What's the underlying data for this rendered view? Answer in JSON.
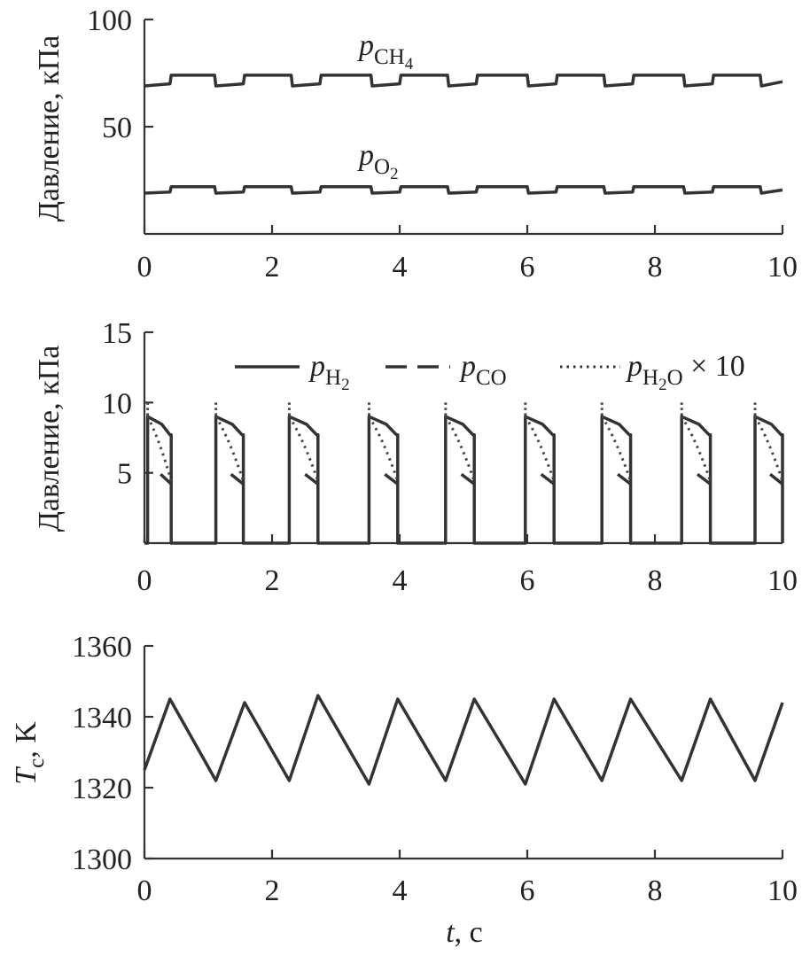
{
  "chart_data": [
    {
      "type": "line",
      "ylabel": "Давление, кПа",
      "xlim": [
        0,
        10
      ],
      "ylim": [
        0,
        100
      ],
      "xticks": [
        "0",
        "2",
        "4",
        "6",
        "8",
        "10"
      ],
      "yticks": [
        "50",
        "100"
      ],
      "grid": false,
      "annotations": [
        {
          "base": "p",
          "sub": "CH",
          "subsub": "4",
          "near_series": "CH4"
        },
        {
          "base": "p",
          "sub": "O",
          "subsub": "2",
          "near_series": "O2"
        }
      ],
      "series": [
        {
          "key": "CH4",
          "style": "solid",
          "x": [
            0,
            0.4,
            0.42,
            1.1,
            1.12,
            1.55,
            1.57,
            2.3,
            2.32,
            2.75,
            2.77,
            3.55,
            3.57,
            4.0,
            4.02,
            4.75,
            4.77,
            5.2,
            5.22,
            6.0,
            6.02,
            6.45,
            6.47,
            7.2,
            7.22,
            7.65,
            7.67,
            8.45,
            8.47,
            8.9,
            8.92,
            9.65,
            9.67,
            10
          ],
          "y": [
            69,
            70,
            74,
            74,
            69,
            70,
            74,
            74,
            69,
            70,
            74,
            74,
            69,
            70,
            74,
            74,
            69,
            70,
            74,
            74,
            69,
            70,
            74,
            74,
            69,
            70,
            74,
            74,
            69,
            70,
            74,
            74,
            69,
            71
          ]
        },
        {
          "key": "O2",
          "style": "solid",
          "x": [
            0,
            0.4,
            0.42,
            1.1,
            1.12,
            1.55,
            1.57,
            2.3,
            2.32,
            2.75,
            2.77,
            3.55,
            3.57,
            4.0,
            4.02,
            4.75,
            4.77,
            5.2,
            5.22,
            6.0,
            6.02,
            6.45,
            6.47,
            7.2,
            7.22,
            7.65,
            7.67,
            8.45,
            8.47,
            8.9,
            8.92,
            9.65,
            9.67,
            10
          ],
          "y": [
            19,
            19.5,
            22,
            22,
            19,
            19.5,
            22,
            22,
            19,
            19.5,
            22,
            22,
            19,
            19.5,
            22,
            22,
            19,
            19.5,
            22,
            22,
            19,
            19.5,
            22,
            22,
            19,
            19.5,
            22,
            22,
            19,
            19.5,
            22,
            22,
            19,
            20.5
          ]
        }
      ]
    },
    {
      "type": "line",
      "ylabel": "Давление, кПа",
      "xlim": [
        0,
        10
      ],
      "ylim": [
        0,
        15
      ],
      "xticks": [
        "0",
        "2",
        "4",
        "6",
        "8",
        "10"
      ],
      "yticks": [
        "5",
        "10",
        "15"
      ],
      "grid": false,
      "legend": {
        "placement": "top",
        "entries": [
          {
            "key": "H2",
            "base": "p",
            "sub": "H",
            "subsub": "2",
            "suffix": "",
            "style": "solid"
          },
          {
            "key": "CO",
            "base": "p",
            "sub": "CO",
            "subsub": "",
            "suffix": "",
            "style": "dashed"
          },
          {
            "key": "H2O",
            "base": "p",
            "sub": "H",
            "subsub": "2",
            "sub2": "O",
            "suffix": " × 10",
            "style": "dotted"
          }
        ]
      },
      "pulses": [
        {
          "start": 0.05,
          "end": 0.42
        },
        {
          "start": 1.12,
          "end": 1.55
        },
        {
          "start": 2.27,
          "end": 2.72
        },
        {
          "start": 3.52,
          "end": 3.97
        },
        {
          "start": 4.72,
          "end": 5.17
        },
        {
          "start": 5.97,
          "end": 6.42
        },
        {
          "start": 7.17,
          "end": 7.62
        },
        {
          "start": 8.42,
          "end": 8.87
        },
        {
          "start": 9.57,
          "end": 10.0
        }
      ],
      "pulse_profile": {
        "H2": {
          "start": 9.0,
          "end": 7.7
        },
        "CO": {
          "start": 4.9,
          "end": 4.2
        },
        "H2O_x10": {
          "start": 9.0,
          "end": 4.4
        },
        "spike": 10.0,
        "baseline": 0.0
      }
    },
    {
      "type": "line",
      "xlabel": "t, с",
      "ylabel": "Tc, K",
      "xlim": [
        0,
        10
      ],
      "ylim": [
        1300,
        1360
      ],
      "xticks": [
        "0",
        "2",
        "4",
        "6",
        "8",
        "10"
      ],
      "yticks": [
        "1300",
        "1320",
        "1340",
        "1360"
      ],
      "grid": false,
      "series": [
        {
          "key": "Tc",
          "style": "solid",
          "x": [
            0,
            0.4,
            1.12,
            1.57,
            2.27,
            2.72,
            3.52,
            3.97,
            4.72,
            5.17,
            5.97,
            6.42,
            7.17,
            7.62,
            8.42,
            8.87,
            9.57,
            10
          ],
          "y": [
            1325,
            1345,
            1322,
            1344,
            1322,
            1346,
            1321,
            1345,
            1322,
            1345,
            1321,
            1345,
            1322,
            1345,
            1322,
            1345,
            1322,
            1344
          ]
        }
      ]
    }
  ],
  "labels": {
    "y_axis_1": "Давление, кПа",
    "y_axis_2": "Давление, кПа",
    "y_axis_3_base": "T",
    "y_axis_3_sub": "c",
    "y_axis_3_rest": ", K",
    "x_axis_base": "t",
    "x_axis_rest": ", с"
  }
}
